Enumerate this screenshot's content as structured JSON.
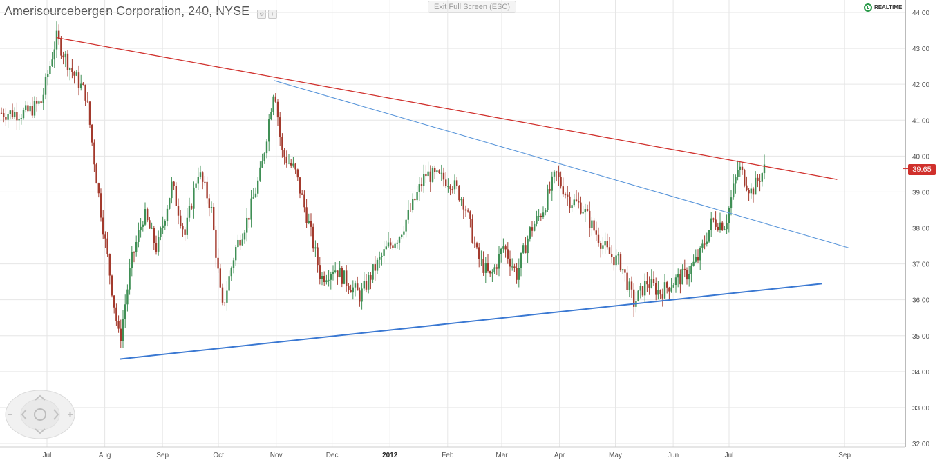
{
  "header": {
    "title": "Amerisourcebergen Corporation, 240, NYSE",
    "exit_label": "Exit Full Screen (ESC)",
    "realtime_label": "REALTIME"
  },
  "last_price": "39.65",
  "colors": {
    "up": "#3f8f55",
    "down": "#a33a2d",
    "red_trend": "#d0302c",
    "blue_trend": "#3a78d2",
    "light_blue_trend": "#5a96da",
    "grid": "#e6e6e6",
    "axis": "#777777",
    "price_badge": "#d0302c"
  },
  "chart_data": {
    "type": "candlestick",
    "title": "Amerisourcebergen Corporation, 240, NYSE",
    "ylim": [
      32.0,
      44.0
    ],
    "y_ticks": [
      "44.00",
      "43.00",
      "42.00",
      "41.00",
      "40.00",
      "39.00",
      "38.00",
      "37.00",
      "36.00",
      "35.00",
      "34.00",
      "33.00",
      "32.00"
    ],
    "x_ticks": [
      "Jul",
      "Aug",
      "Sep",
      "Oct",
      "Nov",
      "Dec",
      "2012",
      "Feb",
      "Mar",
      "Apr",
      "May",
      "Jun",
      "Jul",
      "Sep"
    ],
    "grid": true,
    "last_price": 39.65,
    "series": [
      {
        "name": "price",
        "points": [
          [
            "2011-06-20",
            41.2
          ],
          [
            "2011-06-28",
            41.5
          ],
          [
            "2011-07-06",
            43.3
          ],
          [
            "2011-07-14",
            42.4
          ],
          [
            "2011-07-22",
            41.7
          ],
          [
            "2011-07-29",
            38.8
          ],
          [
            "2011-08-09",
            34.8
          ],
          [
            "2011-08-15",
            37.0
          ],
          [
            "2011-08-22",
            38.4
          ],
          [
            "2011-08-29",
            37.4
          ],
          [
            "2011-09-06",
            39.2
          ],
          [
            "2011-09-13",
            37.8
          ],
          [
            "2011-09-20",
            39.6
          ],
          [
            "2011-09-27",
            38.6
          ],
          [
            "2011-10-03",
            35.7
          ],
          [
            "2011-10-10",
            37.4
          ],
          [
            "2011-10-17",
            38.3
          ],
          [
            "2011-10-24",
            39.6
          ],
          [
            "2011-10-31",
            42.0
          ],
          [
            "2011-11-04",
            40.1
          ],
          [
            "2011-11-11",
            39.6
          ],
          [
            "2011-11-18",
            38.2
          ],
          [
            "2011-11-25",
            36.6
          ],
          [
            "2011-12-02",
            36.9
          ],
          [
            "2011-12-09",
            36.5
          ],
          [
            "2011-12-16",
            36.1
          ],
          [
            "2011-12-23",
            36.8
          ],
          [
            "2011-12-30",
            37.4
          ],
          [
            "2012-01-06",
            37.8
          ],
          [
            "2012-01-13",
            38.6
          ],
          [
            "2012-01-20",
            39.5
          ],
          [
            "2012-01-27",
            39.4
          ],
          [
            "2012-02-03",
            39.3
          ],
          [
            "2012-02-10",
            38.7
          ],
          [
            "2012-02-17",
            37.2
          ],
          [
            "2012-02-24",
            36.6
          ],
          [
            "2012-03-02",
            37.5
          ],
          [
            "2012-03-09",
            36.7
          ],
          [
            "2012-03-16",
            37.9
          ],
          [
            "2012-03-23",
            38.5
          ],
          [
            "2012-03-30",
            39.5
          ],
          [
            "2012-04-06",
            38.8
          ],
          [
            "2012-04-13",
            38.6
          ],
          [
            "2012-04-20",
            37.9
          ],
          [
            "2012-04-27",
            37.3
          ],
          [
            "2012-05-04",
            37.0
          ],
          [
            "2012-05-11",
            35.9
          ],
          [
            "2012-05-18",
            36.5
          ],
          [
            "2012-05-25",
            36.2
          ],
          [
            "2012-06-01",
            36.5
          ],
          [
            "2012-06-08",
            36.7
          ],
          [
            "2012-06-15",
            37.2
          ],
          [
            "2012-06-22",
            38.2
          ],
          [
            "2012-06-29",
            38.1
          ],
          [
            "2012-07-06",
            39.7
          ],
          [
            "2012-07-13",
            39.0
          ],
          [
            "2012-07-20",
            39.65
          ]
        ]
      },
      {
        "name": "",
        "points": [
          [
            "2011-07-06",
            43.3
          ],
          [
            "2012-08-28",
            39.35
          ]
        ]
      },
      {
        "name": "",
        "points": [
          [
            "2011-10-31",
            42.1
          ],
          [
            "2012-09-03",
            37.45
          ]
        ]
      },
      {
        "name": "",
        "points": [
          [
            "2011-08-09",
            34.35
          ],
          [
            "2012-08-20",
            36.45
          ]
        ]
      }
    ]
  }
}
